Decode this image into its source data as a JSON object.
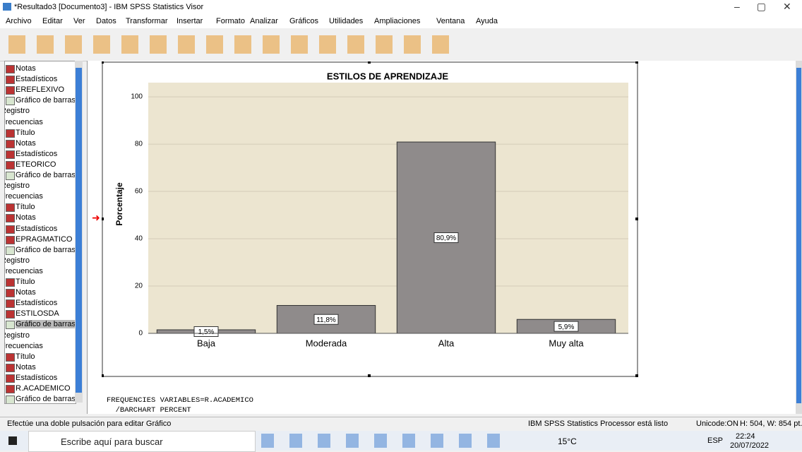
{
  "window": {
    "title": "*Resultado3 [Documento3] - IBM SPSS Statistics Visor"
  },
  "menu": [
    "Archivo",
    "Editar",
    "Ver",
    "Datos",
    "Transformar",
    "Insertar",
    "Formato",
    "Analizar",
    "Gráficos",
    "Utilidades",
    "Ampliaciones",
    "Ventana",
    "Ayuda"
  ],
  "tree": [
    "Notas",
    "Estadísticos",
    "EREFLEXIVO",
    "Gráfico de barras",
    "Registro",
    "Frecuencias",
    "Título",
    "Notas",
    "Estadísticos",
    "ETEORICO",
    "Gráfico de barras",
    "Registro",
    "Frecuencias",
    "Título",
    "Notas",
    "Estadísticos",
    "EPRAGMATICO",
    "Gráfico de barras",
    "Registro",
    "Frecuencias",
    "Título",
    "Notas",
    "Estadísticos",
    "ESTILOSDA",
    "Gráfico de barras",
    "Registro",
    "Frecuencias",
    "Título",
    "Notas",
    "Estadísticos",
    "R.ACADEMICO",
    "Gráfico de barras"
  ],
  "chart_data": {
    "type": "bar",
    "title": "ESTILOS DE APRENDIZAJE",
    "y_label": "Porcentaje",
    "categories": [
      "Baja",
      "Moderada",
      "Alta",
      "Muy alta"
    ],
    "values": [
      1.5,
      11.8,
      80.9,
      5.9
    ],
    "value_labels": [
      "1,5%",
      "11,8%",
      "80,9%",
      "5,9%"
    ],
    "color": "#8f8b8b",
    "ylim": [
      0,
      106
    ],
    "yticks": [
      0,
      20,
      40,
      60,
      80,
      100
    ],
    "grid": true
  },
  "syntax": [
    "FREQUENCIES VARIABLES=R.ACADEMICO",
    "  /BARCHART PERCENT"
  ],
  "status": {
    "hint": "Efectúe una doble pulsación para editar Gráfico",
    "processor": "IBM SPSS Statistics Processor está listo",
    "unicode": "Unicode:ON",
    "size": "H: 504, W: 854 pt."
  },
  "taskbar": {
    "search": "Escribe aquí para buscar",
    "weather": "15°C",
    "lang": "ESP",
    "time": "22:24",
    "date": "20/07/2022"
  }
}
